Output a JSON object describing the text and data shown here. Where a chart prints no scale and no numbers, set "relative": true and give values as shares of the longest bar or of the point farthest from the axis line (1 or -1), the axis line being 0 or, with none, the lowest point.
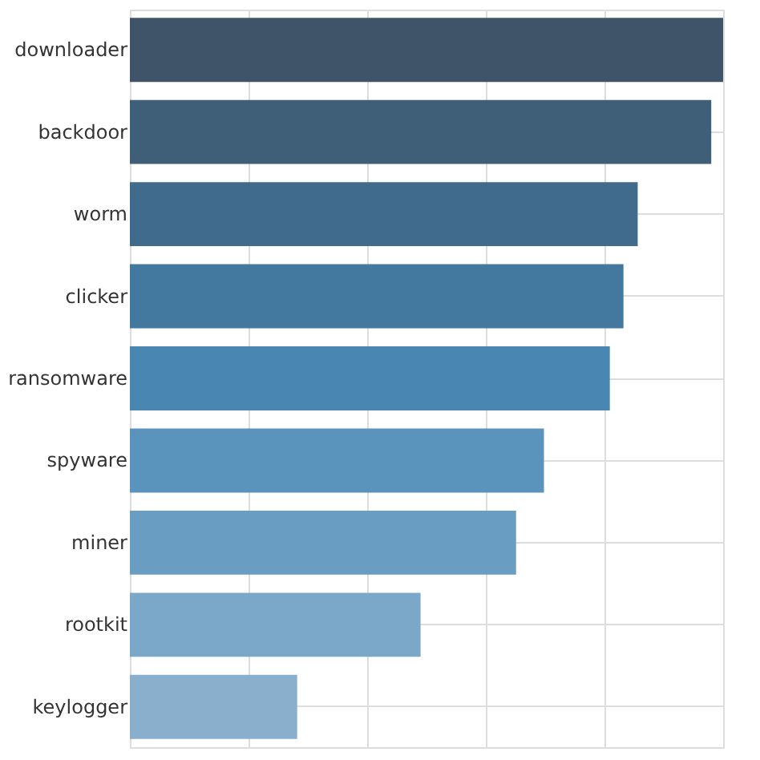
{
  "chart_data": {
    "type": "bar",
    "orientation": "horizontal",
    "relative": true,
    "grid": true,
    "categories": [
      "downloader",
      "backdoor",
      "worm",
      "clicker",
      "ransomware",
      "spyware",
      "miner",
      "rootkit",
      "keylogger"
    ],
    "values": [
      1,
      0.98,
      0.856,
      0.832,
      0.809,
      0.698,
      0.651,
      0.49,
      0.282
    ],
    "colors": [
      "#3f5468",
      "#3f5e78",
      "#416b8c",
      "#43789f",
      "#4a86b2",
      "#5a93bb",
      "#6a9dc2",
      "#7ba7c8",
      "#8aafcc"
    ]
  }
}
